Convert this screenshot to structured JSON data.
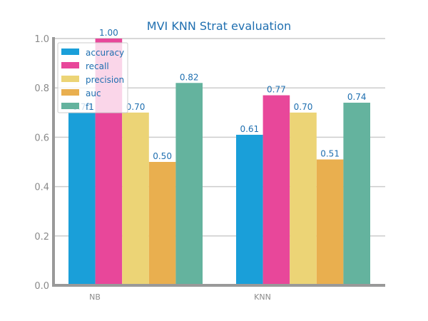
{
  "chart_data": {
    "type": "bar",
    "title": "MVI KNN Strat evaluation",
    "xlabel": "",
    "ylabel": "",
    "categories": [
      "NB",
      "KNN"
    ],
    "ylim": [
      0,
      1.0
    ],
    "yticks": [
      "0.0",
      "0.2",
      "0.4",
      "0.6",
      "0.8",
      "1.0"
    ],
    "grid": true,
    "legend_position": "top-left",
    "series": [
      {
        "name": "accuracy",
        "color": "#1a9fd9",
        "values": [
          0.7,
          0.61
        ],
        "labels": [
          "0.70",
          "0.61"
        ]
      },
      {
        "name": "recall",
        "color": "#e8479a",
        "values": [
          1.0,
          0.77
        ],
        "labels": [
          "1.00",
          "0.77"
        ]
      },
      {
        "name": "precision",
        "color": "#ecd476",
        "values": [
          0.7,
          0.7
        ],
        "labels": [
          "0.70",
          "0.70"
        ]
      },
      {
        "name": "auc",
        "color": "#e9af4f",
        "values": [
          0.5,
          0.51
        ],
        "labels": [
          "0.50",
          "0.51"
        ]
      },
      {
        "name": "f1",
        "color": "#64b39e",
        "values": [
          0.82,
          0.74
        ],
        "labels": [
          "0.82",
          "0.74"
        ]
      }
    ]
  }
}
